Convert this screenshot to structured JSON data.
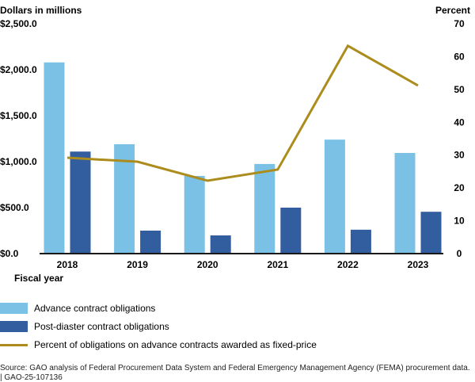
{
  "chart_data": {
    "type": "bar",
    "categories": [
      "2018",
      "2019",
      "2020",
      "2021",
      "2022",
      "2023"
    ],
    "xlabel": "Fiscal year",
    "ylabel": "Dollars in millions",
    "y2label": "Percent",
    "ylim": [
      0,
      2500
    ],
    "y2lim": [
      0,
      70
    ],
    "yticks": [
      "$0.0",
      "$500.0",
      "$1,000.0",
      "$1,500.0",
      "$2,000.0",
      "$2,500.0"
    ],
    "ytick_values": [
      0,
      500,
      1000,
      1500,
      2000,
      2500
    ],
    "y2ticks": [
      "0",
      "10",
      "20",
      "30",
      "40",
      "50",
      "60",
      "70"
    ],
    "y2tick_values": [
      0,
      10,
      20,
      30,
      40,
      50,
      60,
      70
    ],
    "grid": false,
    "legend_position": "bottom",
    "series": [
      {
        "name": "Advance contract obligations",
        "type": "bar",
        "axis": "left",
        "color": "#7bc1e6",
        "values": [
          2080,
          1190,
          845,
          975,
          1240,
          1095
        ]
      },
      {
        "name": "Post-diaster contract obligations",
        "type": "bar",
        "axis": "left",
        "color": "#325d9e",
        "values": [
          1110,
          250,
          198,
          500,
          260,
          455
        ]
      },
      {
        "name": "Percent of obligations on advance contracts awarded as fixed-price",
        "type": "line",
        "axis": "right",
        "color": "#ab8c1c",
        "values": [
          29.2,
          28.0,
          22.2,
          25.6,
          63.3,
          51.2
        ]
      }
    ]
  },
  "source": {
    "text": "Source: GAO analysis of Federal Procurement Data System and Federal Emergency Management Agency (FEMA) procurement data.",
    "id": "|  GAO-25-107136"
  }
}
